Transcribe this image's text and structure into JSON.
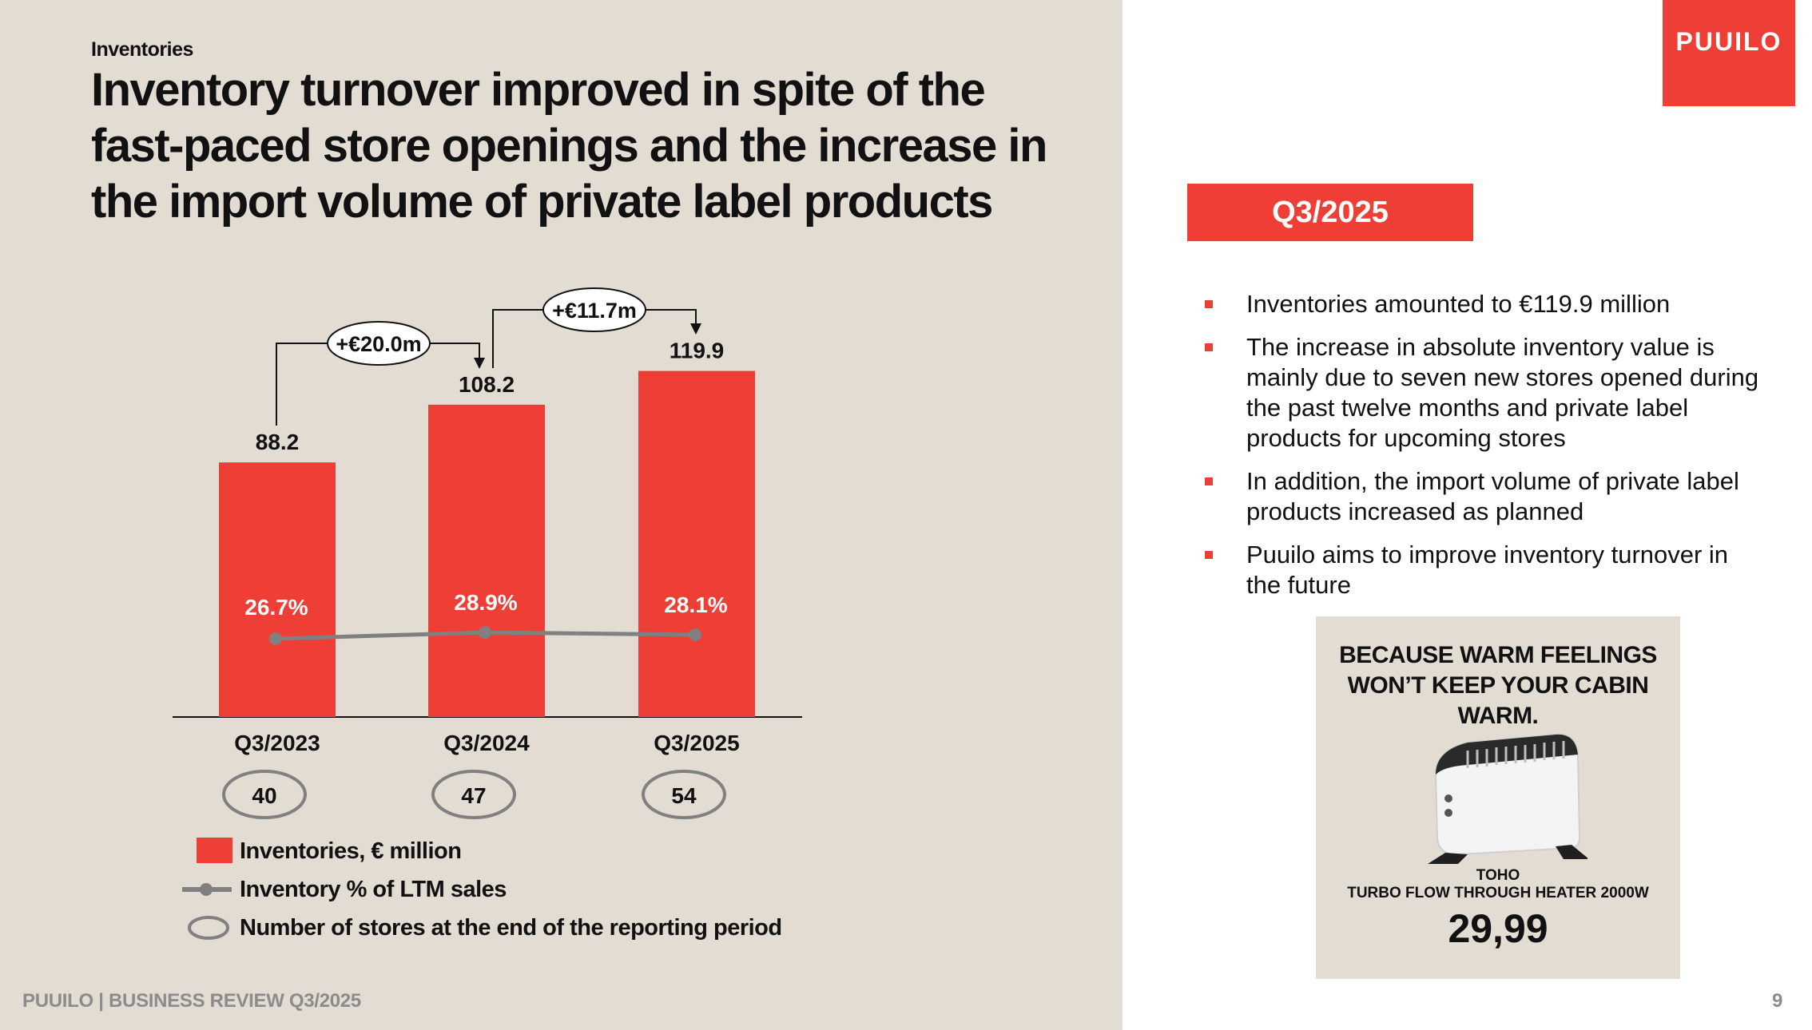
{
  "header": {
    "section": "Inventories",
    "title": "Inventory turnover improved in spite of the fast-paced store openings and the increase in the import volume of private label products"
  },
  "brand": {
    "logo": "PUUILO"
  },
  "footer": {
    "left": "PUUILO | BUSINESS REVIEW Q3/2025",
    "page": "9"
  },
  "side": {
    "period": "Q3/2025",
    "bullets": [
      "Inventories amounted to €119.9 million",
      "The increase in absolute inventory value is mainly due to seven new stores opened during the past twelve months and private label products for upcoming stores",
      "In addition, the import volume of private label products increased as planned",
      "Puuilo aims to improve inventory turnover in the future"
    ]
  },
  "ad": {
    "headline_line1": "BECAUSE WARM FEELINGS",
    "headline_line2": "WON’T KEEP YOUR CABIN WARM.",
    "brand": "TOHO",
    "product": "TURBO FLOW THROUGH HEATER 2000W",
    "price": "29,99"
  },
  "colors": {
    "accent": "#ef3e36",
    "panel": "#e2dcd2",
    "line": "#808080"
  },
  "chart_data": {
    "type": "bar",
    "categories": [
      "Q3/2023",
      "Q3/2024",
      "Q3/2025"
    ],
    "series": [
      {
        "name": "Inventories, € million",
        "type": "bar",
        "values": [
          88.2,
          108.2,
          119.9
        ],
        "labels": [
          "88.2",
          "108.2",
          "119.9"
        ]
      },
      {
        "name": "Inventory % of LTM sales",
        "type": "line",
        "values": [
          26.7,
          28.9,
          28.1
        ],
        "labels": [
          "26.7%",
          "28.9%",
          "28.1%"
        ]
      },
      {
        "name": "Number of stores at the end of the reporting period",
        "type": "ellipse-label",
        "values": [
          40,
          47,
          54
        ]
      }
    ],
    "annotations": [
      {
        "from": "Q3/2023",
        "to": "Q3/2024",
        "text": "+€20.0m"
      },
      {
        "from": "Q3/2024",
        "to": "Q3/2025",
        "text": "+€11.7m"
      }
    ],
    "legend": [
      {
        "marker": "bar",
        "text": "Inventories, € million"
      },
      {
        "marker": "line",
        "text": "Inventory % of LTM sales"
      },
      {
        "marker": "ellipse",
        "text": "Number of stores at the end of the reporting period"
      }
    ]
  }
}
